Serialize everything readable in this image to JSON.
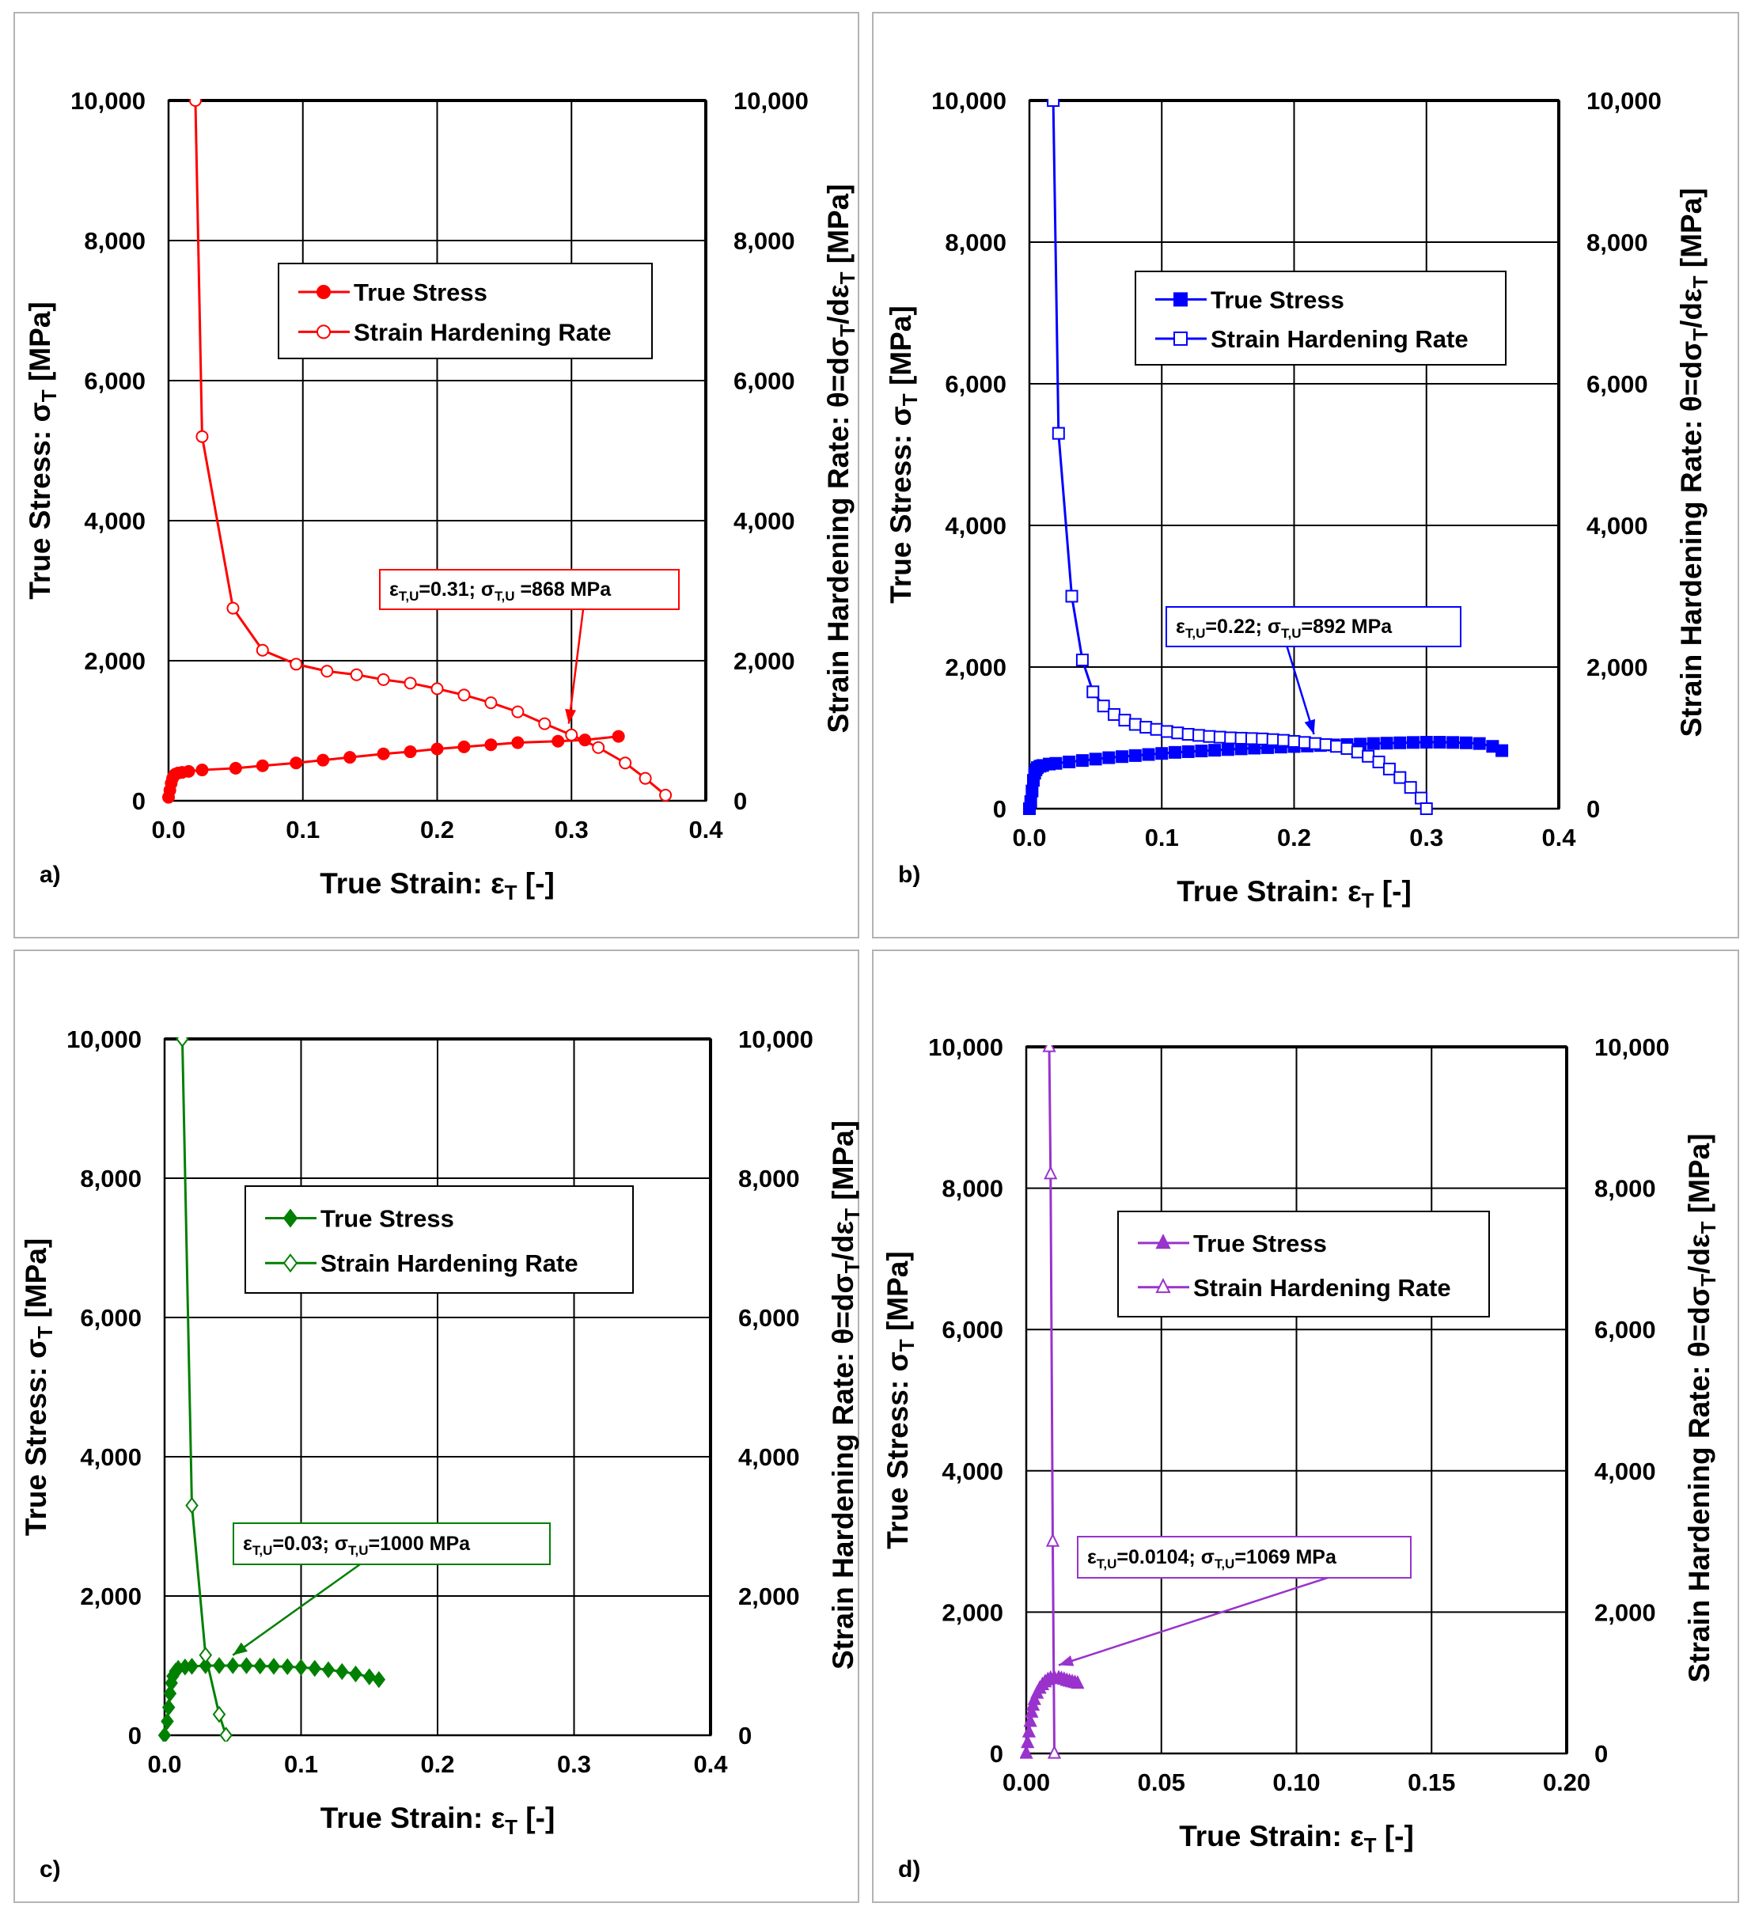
{
  "chart_data": [
    {
      "type": "scatter",
      "panel_label": "a)",
      "color": "#ff0000",
      "marker": "circle",
      "x_axis": {
        "label": "True Strain: ε",
        "label_sub": "T",
        "label_suffix": " [-]",
        "range": [
          0,
          0.4
        ],
        "ticks": [
          "0.0",
          "0.1",
          "0.2",
          "0.3",
          "0.4"
        ],
        "tick_values": [
          0,
          0.1,
          0.2,
          0.3,
          0.4
        ]
      },
      "y_left": {
        "label": "True Stress: σ",
        "label_sub": "T",
        "label_suffix": " [MPa]",
        "range": [
          0,
          10000
        ],
        "ticks": [
          "0",
          "2,000",
          "4,000",
          "6,000",
          "8,000",
          "10,000"
        ]
      },
      "y_right": {
        "label": "Strain Hardening Rate: θ=dσ",
        "label_sub": "T",
        "label_mid": "/dε",
        "label_sub2": "T",
        "label_suffix": " [MPa]",
        "range": [
          0,
          10000
        ],
        "ticks": [
          "0",
          "2,000",
          "4,000",
          "6,000",
          "8,000",
          "10,000"
        ]
      },
      "grid": true,
      "legend": {
        "position": "top-center",
        "entries": [
          "True Stress",
          "Strain Hardening Rate"
        ]
      },
      "series": [
        {
          "name": "True Stress",
          "filled": true,
          "axis": "left",
          "x": [
            0.0,
            0.001,
            0.002,
            0.003,
            0.004,
            0.005,
            0.007,
            0.01,
            0.015,
            0.025,
            0.05,
            0.07,
            0.095,
            0.115,
            0.135,
            0.16,
            0.18,
            0.2,
            0.22,
            0.24,
            0.26,
            0.29,
            0.31,
            0.335
          ],
          "y": [
            50,
            150,
            250,
            320,
            360,
            380,
            395,
            405,
            420,
            440,
            465,
            500,
            540,
            580,
            620,
            670,
            700,
            740,
            770,
            800,
            830,
            850,
            868,
            920
          ]
        },
        {
          "name": "Strain Hardening Rate",
          "filled": false,
          "axis": "right",
          "x": [
            0.02,
            0.025,
            0.048,
            0.07,
            0.095,
            0.118,
            0.14,
            0.16,
            0.18,
            0.2,
            0.22,
            0.24,
            0.26,
            0.28,
            0.3,
            0.32,
            0.34,
            0.355,
            0.37
          ],
          "y": [
            10000,
            5200,
            2750,
            2150,
            1950,
            1850,
            1800,
            1730,
            1680,
            1600,
            1510,
            1400,
            1270,
            1100,
            940,
            760,
            540,
            320,
            80
          ]
        }
      ],
      "annotation": {
        "label_pre": "ε",
        "label_sub1": "T,U",
        "label_mid": "=0.31; σ",
        "label_sub2": "T,U",
        "label_post": " =868 MPa",
        "arrow_to": [
          0.298,
          1100
        ]
      }
    },
    {
      "type": "scatter",
      "panel_label": "b)",
      "color": "#0000ff",
      "marker": "square",
      "x_axis": {
        "label": "True Strain: ε",
        "label_sub": "T",
        "label_suffix": " [-]",
        "range": [
          0,
          0.4
        ],
        "ticks": [
          "0.0",
          "0.1",
          "0.2",
          "0.3",
          "0.4"
        ],
        "tick_values": [
          0,
          0.1,
          0.2,
          0.3,
          0.4
        ]
      },
      "y_left": {
        "label": "True Stress: σ",
        "label_sub": "T",
        "label_suffix": " [MPa]",
        "range": [
          0,
          10000
        ],
        "ticks": [
          "0",
          "2,000",
          "4,000",
          "6,000",
          "8,000",
          "10,000"
        ]
      },
      "y_right": {
        "label": "Strain Hardening Rate: θ=dσ",
        "label_sub": "T",
        "label_mid": "/dε",
        "label_sub2": "T",
        "label_suffix": " [MPa]",
        "range": [
          0,
          10000
        ],
        "ticks": [
          "0",
          "2,000",
          "4,000",
          "6,000",
          "8,000",
          "10,000"
        ]
      },
      "grid": true,
      "legend": {
        "position": "top-center",
        "entries": [
          "True Stress",
          "Strain Hardening Rate"
        ]
      },
      "series": [
        {
          "name": "True Stress",
          "filled": true,
          "axis": "left",
          "x": [
            0.0,
            0.001,
            0.002,
            0.003,
            0.004,
            0.005,
            0.006,
            0.008,
            0.01,
            0.015,
            0.02,
            0.03,
            0.04,
            0.05,
            0.06,
            0.07,
            0.08,
            0.09,
            0.1,
            0.11,
            0.12,
            0.13,
            0.14,
            0.15,
            0.16,
            0.17,
            0.18,
            0.19,
            0.2,
            0.21,
            0.22,
            0.23,
            0.24,
            0.25,
            0.26,
            0.27,
            0.28,
            0.29,
            0.3,
            0.31,
            0.32,
            0.33,
            0.34,
            0.35,
            0.357
          ],
          "y": [
            0,
            100,
            250,
            400,
            500,
            550,
            580,
            600,
            610,
            630,
            640,
            660,
            680,
            700,
            720,
            735,
            750,
            765,
            780,
            795,
            805,
            815,
            825,
            835,
            845,
            855,
            862,
            870,
            878,
            885,
            892,
            900,
            905,
            912,
            920,
            925,
            930,
            935,
            938,
            938,
            935,
            930,
            920,
            880,
            820
          ]
        },
        {
          "name": "Strain Hardening Rate",
          "filled": false,
          "axis": "right",
          "x": [
            0.018,
            0.022,
            0.032,
            0.04,
            0.048,
            0.056,
            0.064,
            0.072,
            0.08,
            0.088,
            0.096,
            0.104,
            0.112,
            0.12,
            0.128,
            0.136,
            0.144,
            0.152,
            0.16,
            0.168,
            0.176,
            0.184,
            0.192,
            0.2,
            0.208,
            0.216,
            0.224,
            0.232,
            0.24,
            0.248,
            0.256,
            0.264,
            0.272,
            0.28,
            0.288,
            0.296,
            0.3
          ],
          "y": [
            10000,
            5300,
            3000,
            2100,
            1650,
            1450,
            1330,
            1250,
            1190,
            1150,
            1120,
            1090,
            1070,
            1050,
            1035,
            1020,
            1010,
            1000,
            995,
            990,
            985,
            975,
            965,
            950,
            935,
            920,
            905,
            880,
            850,
            800,
            740,
            660,
            560,
            440,
            300,
            150,
            0
          ]
        }
      ],
      "annotation": {
        "label_pre": "ε",
        "label_sub1": "T,U",
        "label_mid": "=0.22; σ",
        "label_sub2": "T,U",
        "label_post": "=892 MPa",
        "arrow_to": [
          0.215,
          1050
        ]
      }
    },
    {
      "type": "scatter",
      "panel_label": "c)",
      "color": "#008000",
      "marker": "diamond",
      "x_axis": {
        "label": "True Strain: ε",
        "label_sub": "T",
        "label_suffix": " [-]",
        "range": [
          0,
          0.4
        ],
        "ticks": [
          "0.0",
          "0.1",
          "0.2",
          "0.3",
          "0.4"
        ],
        "tick_values": [
          0,
          0.1,
          0.2,
          0.3,
          0.4
        ]
      },
      "y_left": {
        "label": "True Stress: σ",
        "label_sub": "T",
        "label_suffix": " [MPa]",
        "range": [
          0,
          10000
        ],
        "ticks": [
          "0",
          "2,000",
          "4,000",
          "6,000",
          "8,000",
          "10,000"
        ]
      },
      "y_right": {
        "label": "Strain Hardening Rate: θ=dσ",
        "label_sub": "T",
        "label_mid": "/dε",
        "label_sub2": "T",
        "label_suffix": " [MPa]",
        "range": [
          0,
          10000
        ],
        "ticks": [
          "0",
          "2,000",
          "4,000",
          "6,000",
          "8,000",
          "10,000"
        ]
      },
      "grid": true,
      "legend": {
        "position": "top-center",
        "entries": [
          "True Stress",
          "Strain Hardening Rate"
        ]
      },
      "series": [
        {
          "name": "True Stress",
          "filled": true,
          "axis": "left",
          "x": [
            0.0,
            0.002,
            0.003,
            0.004,
            0.005,
            0.006,
            0.008,
            0.01,
            0.015,
            0.02,
            0.03,
            0.04,
            0.05,
            0.06,
            0.07,
            0.08,
            0.09,
            0.1,
            0.11,
            0.12,
            0.13,
            0.14,
            0.15,
            0.157
          ],
          "y": [
            0,
            200,
            400,
            600,
            750,
            850,
            920,
            960,
            980,
            990,
            1000,
            1000,
            1000,
            1000,
            995,
            990,
            985,
            975,
            960,
            940,
            915,
            880,
            840,
            800
          ]
        },
        {
          "name": "Strain Hardening Rate",
          "filled": false,
          "axis": "right",
          "x": [
            0.013,
            0.02,
            0.03,
            0.04,
            0.045
          ],
          "y": [
            10000,
            3300,
            1150,
            300,
            0
          ]
        }
      ],
      "annotation": {
        "label_pre": "ε",
        "label_sub1": "T,U",
        "label_mid": "=0.03; σ",
        "label_sub2": "T,U",
        "label_post": "=1000 MPa",
        "arrow_to": [
          0.05,
          1150
        ]
      }
    },
    {
      "type": "scatter",
      "panel_label": "d)",
      "color": "#9933cc",
      "marker": "triangle",
      "x_axis": {
        "label": "True Strain: ε",
        "label_sub": "T",
        "label_suffix": " [-]",
        "range": [
          0,
          0.2
        ],
        "ticks": [
          "0.00",
          "0.05",
          "0.10",
          "0.15",
          "0.20"
        ],
        "tick_values": [
          0,
          0.05,
          0.1,
          0.15,
          0.2
        ]
      },
      "y_left": {
        "label": "True Stress: σ",
        "label_sub": "T",
        "label_suffix": " [MPa]",
        "range": [
          0,
          10000
        ],
        "ticks": [
          "0",
          "2,000",
          "4,000",
          "6,000",
          "8,000",
          "10,000"
        ]
      },
      "y_right": {
        "label": "Strain Hardening Rate: θ=dσ",
        "label_sub": "T",
        "label_mid": "/dε",
        "label_sub2": "T",
        "label_suffix": " [MPa]",
        "range": [
          0,
          10000
        ],
        "ticks": [
          "0",
          "2,000",
          "4,000",
          "6,000",
          "8,000",
          "10,000"
        ]
      },
      "grid": true,
      "legend": {
        "position": "top-center",
        "entries": [
          "True Stress",
          "Strain Hardening Rate"
        ]
      },
      "series": [
        {
          "name": "True Stress",
          "filled": true,
          "axis": "left",
          "x": [
            0.0,
            0.0005,
            0.001,
            0.0015,
            0.002,
            0.0025,
            0.003,
            0.004,
            0.005,
            0.006,
            0.007,
            0.008,
            0.009,
            0.0104,
            0.012,
            0.013,
            0.014,
            0.015,
            0.016,
            0.017,
            0.018,
            0.019
          ],
          "y": [
            0,
            150,
            300,
            450,
            580,
            680,
            760,
            850,
            920,
            970,
            1010,
            1040,
            1060,
            1069,
            1065,
            1055,
            1045,
            1030,
            1020,
            1010,
            1000,
            990
          ]
        },
        {
          "name": "Strain Hardening Rate",
          "filled": false,
          "axis": "right",
          "x": [
            0.0085,
            0.009,
            0.0098,
            0.0104
          ],
          "y": [
            10000,
            8200,
            3000,
            0
          ]
        }
      ],
      "annotation": {
        "label_pre": "ε",
        "label_sub1": "T,U",
        "label_mid": "=0.0104; σ",
        "label_sub2": "T,U",
        "label_post": "=1069 MPa",
        "arrow_to": [
          0.012,
          1250
        ]
      }
    }
  ]
}
